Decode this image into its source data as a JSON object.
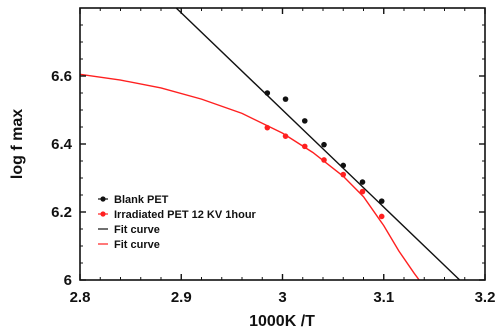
{
  "chart_data": {
    "type": "scatter",
    "xlabel": "1000K /T",
    "ylabel": "log f max",
    "xlim": [
      2.8,
      3.2
    ],
    "ylim": [
      6.0,
      6.8
    ],
    "x_ticks": [
      2.8,
      2.9,
      3.0,
      3.1,
      3.2
    ],
    "x_tick_labels": [
      "2.8",
      "2.9",
      "3",
      "3.1",
      "3.2"
    ],
    "y_ticks": [
      6.0,
      6.2,
      6.4,
      6.6
    ],
    "y_tick_labels": [
      "6",
      "6.2",
      "6.4",
      "6.6"
    ],
    "legend_position": "bottom-left",
    "series": [
      {
        "name": "Blank PET",
        "kind": "points",
        "color": "#111111",
        "x": [
          2.985,
          3.003,
          3.022,
          3.041,
          3.06,
          3.079,
          3.098
        ],
        "y": [
          6.55,
          6.532,
          6.468,
          6.398,
          6.337,
          6.288,
          6.232
        ]
      },
      {
        "name": "Irradiated PET  12 KV 1hour",
        "kind": "points",
        "color": "#ff2020",
        "x": [
          2.985,
          3.003,
          3.022,
          3.041,
          3.06,
          3.079,
          3.098
        ],
        "y": [
          6.448,
          6.423,
          6.393,
          6.353,
          6.31,
          6.26,
          6.187
        ]
      },
      {
        "name": "Fit curve",
        "kind": "line",
        "color": "#111111",
        "x": [
          2.895,
          3.175
        ],
        "y": [
          6.8,
          6.0
        ]
      },
      {
        "name": "Fit curve",
        "kind": "line",
        "color": "#ff2020",
        "x": [
          2.8,
          2.84,
          2.88,
          2.92,
          2.96,
          3.0,
          3.03,
          3.06,
          3.08,
          3.1,
          3.115,
          3.13,
          3.135
        ],
        "y": [
          6.605,
          6.588,
          6.565,
          6.532,
          6.49,
          6.432,
          6.375,
          6.305,
          6.245,
          6.16,
          6.085,
          6.02,
          6.0
        ]
      }
    ]
  }
}
